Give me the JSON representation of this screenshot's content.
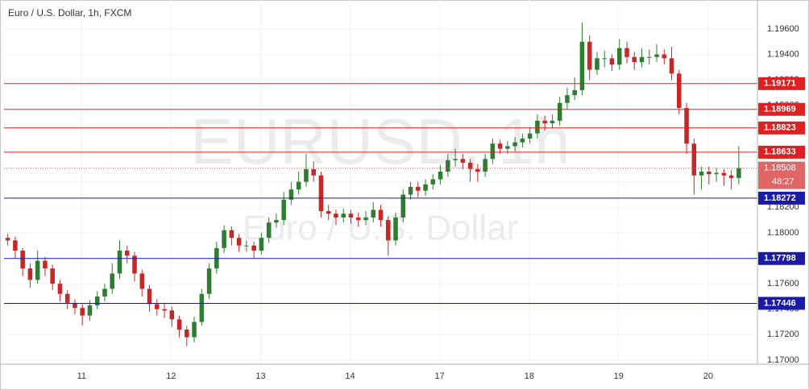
{
  "chart_data": {
    "type": "candlestick",
    "title": "Euro / U.S. Dollar, 1h, FXCM",
    "watermark": "EURUSD, 1h",
    "watermark_subtitle": "Euro / U.S. Dollar",
    "xlim": [
      -0.5,
      100.5
    ],
    "xticks": [
      {
        "value": 9.9,
        "label": "11"
      },
      {
        "value": 21.9,
        "label": "12"
      },
      {
        "value": 33.9,
        "label": "13"
      },
      {
        "value": 45.9,
        "label": "14"
      },
      {
        "value": 57.9,
        "label": "17"
      },
      {
        "value": 69.9,
        "label": "18"
      },
      {
        "value": 81.9,
        "label": "19"
      },
      {
        "value": 93.9,
        "label": "20"
      }
    ],
    "ylim": [
      1.16968,
      1.19796
    ],
    "yticks": [
      {
        "value": 1.17,
        "label": "1.17000"
      },
      {
        "value": 1.172,
        "label": "1.17200"
      },
      {
        "value": 1.174,
        "label": "1.17400"
      },
      {
        "value": 1.176,
        "label": "1.17600"
      },
      {
        "value": 1.178,
        "label": "1.17800"
      },
      {
        "value": 1.18,
        "label": "1.18000"
      },
      {
        "value": 1.182,
        "label": "1.18200"
      },
      {
        "value": 1.184,
        "label": "1.18400"
      },
      {
        "value": 1.186,
        "label": "1.18600"
      },
      {
        "value": 1.188,
        "label": "1.18800"
      },
      {
        "value": 1.19,
        "label": "1.19000"
      },
      {
        "value": 1.192,
        "label": "1.19200"
      },
      {
        "value": 1.194,
        "label": "1.19400"
      },
      {
        "value": 1.196,
        "label": "1.19600"
      }
    ],
    "grid": true,
    "up_color": "#2e7d32",
    "down_color": "#c62828",
    "open": [
      1.1796,
      1.1794,
      1.1786,
      1.1772,
      1.1763,
      1.1778,
      1.1772,
      1.176,
      1.1752,
      1.1745,
      1.1741,
      1.1735,
      1.1743,
      1.175,
      1.1756,
      1.1768,
      1.1786,
      1.1782,
      1.1768,
      1.1756,
      1.1744,
      1.174,
      1.1739,
      1.1732,
      1.1724,
      1.1718,
      1.173,
      1.1752,
      1.1772,
      1.1788,
      1.1802,
      1.1796,
      1.179,
      1.179,
      1.1786,
      1.1796,
      1.1808,
      1.181,
      1.1826,
      1.1834,
      1.184,
      1.185,
      1.1845,
      1.1817,
      1.1815,
      1.1812,
      1.1815,
      1.1812,
      1.181,
      1.1812,
      1.1818,
      1.181,
      1.1794,
      1.1812,
      1.183,
      1.1836,
      1.1833,
      1.1838,
      1.1842,
      1.1848,
      1.1857,
      1.1858,
      1.1855,
      1.185,
      1.1848,
      1.1858,
      1.187,
      1.1866,
      1.1868,
      1.1871,
      1.1874,
      1.1878,
      1.1888,
      1.1886,
      1.1888,
      1.1902,
      1.1908,
      1.1912,
      1.195,
      1.1928,
      1.1937,
      1.1937,
      1.1932,
      1.1945,
      1.1938,
      1.1934,
      1.1938,
      1.1938,
      1.194,
      1.1937,
      1.1925,
      1.1898,
      1.187,
      1.1845,
      1.1848,
      1.1846,
      1.1847,
      1.1845,
      1.1843
    ],
    "high": [
      1.1799,
      1.1797,
      1.1788,
      1.1776,
      1.1786,
      1.1781,
      1.1775,
      1.1763,
      1.1755,
      1.1748,
      1.1744,
      1.1747,
      1.1754,
      1.176,
      1.1776,
      1.1794,
      1.179,
      1.1785,
      1.1771,
      1.1759,
      1.1748,
      1.1745,
      1.1742,
      1.1735,
      1.1727,
      1.1734,
      1.1756,
      1.1776,
      1.1793,
      1.1806,
      1.1805,
      1.1799,
      1.1794,
      1.1793,
      1.18,
      1.1812,
      1.1815,
      1.1832,
      1.184,
      1.1848,
      1.1862,
      1.1856,
      1.1848,
      1.1822,
      1.1818,
      1.1819,
      1.1818,
      1.1816,
      1.1817,
      1.1824,
      1.1822,
      1.1813,
      1.1816,
      1.1834,
      1.184,
      1.184,
      1.1842,
      1.1846,
      1.1853,
      1.1862,
      1.1866,
      1.1862,
      1.1858,
      1.1854,
      1.1862,
      1.1874,
      1.1873,
      1.1872,
      1.1875,
      1.1878,
      1.1883,
      1.1893,
      1.1892,
      1.1893,
      1.1907,
      1.1914,
      1.1922,
      1.1965,
      1.1955,
      1.1942,
      1.1943,
      1.194,
      1.1952,
      1.195,
      1.1942,
      1.1945,
      1.1944,
      1.1948,
      1.1944,
      1.1946,
      1.1928,
      1.1902,
      1.1874,
      1.1852,
      1.1852,
      1.1851,
      1.185,
      1.1849,
      1.1868
    ],
    "low": [
      1.179,
      1.178,
      1.1766,
      1.1757,
      1.176,
      1.1766,
      1.1755,
      1.1746,
      1.174,
      1.1736,
      1.1727,
      1.1731,
      1.174,
      1.1746,
      1.1752,
      1.1764,
      1.1776,
      1.1762,
      1.175,
      1.1738,
      1.1735,
      1.1733,
      1.1726,
      1.1718,
      1.1711,
      1.1714,
      1.1727,
      1.1748,
      1.1768,
      1.1784,
      1.179,
      1.1785,
      1.1785,
      1.178,
      1.1783,
      1.1792,
      1.1804,
      1.1806,
      1.1822,
      1.183,
      1.1836,
      1.184,
      1.1812,
      1.181,
      1.1806,
      1.1808,
      1.1807,
      1.1805,
      1.1806,
      1.1808,
      1.1805,
      1.1782,
      1.179,
      1.1808,
      1.1826,
      1.1828,
      1.1829,
      1.1834,
      1.1838,
      1.1844,
      1.1852,
      1.185,
      1.184,
      1.184,
      1.1844,
      1.1854,
      1.1862,
      1.1862,
      1.1864,
      1.1867,
      1.187,
      1.1874,
      1.188,
      1.1882,
      1.1884,
      1.1897,
      1.1904,
      1.1908,
      1.192,
      1.1924,
      1.193,
      1.1927,
      1.1928,
      1.1933,
      1.1928,
      1.193,
      1.1932,
      1.1934,
      1.1932,
      1.192,
      1.1893,
      1.1862,
      1.183,
      1.1834,
      1.1838,
      1.184,
      1.1837,
      1.1834,
      1.1838
    ],
    "close": [
      1.1794,
      1.1786,
      1.1772,
      1.1763,
      1.1778,
      1.1772,
      1.176,
      1.1752,
      1.1745,
      1.1741,
      1.1735,
      1.1743,
      1.175,
      1.1756,
      1.1768,
      1.1786,
      1.1782,
      1.1768,
      1.1756,
      1.1744,
      1.174,
      1.1739,
      1.1732,
      1.1724,
      1.1718,
      1.173,
      1.1752,
      1.1772,
      1.1788,
      1.1802,
      1.1796,
      1.179,
      1.179,
      1.1786,
      1.1796,
      1.1808,
      1.181,
      1.1826,
      1.1834,
      1.184,
      1.185,
      1.1845,
      1.1817,
      1.1815,
      1.1812,
      1.1815,
      1.1812,
      1.181,
      1.1812,
      1.1818,
      1.181,
      1.1794,
      1.1812,
      1.183,
      1.1836,
      1.1833,
      1.1838,
      1.1842,
      1.1848,
      1.1857,
      1.1858,
      1.1855,
      1.185,
      1.1848,
      1.1858,
      1.187,
      1.1866,
      1.1868,
      1.1871,
      1.1874,
      1.1878,
      1.1888,
      1.1886,
      1.1888,
      1.1902,
      1.1908,
      1.1912,
      1.195,
      1.1928,
      1.1937,
      1.1937,
      1.1932,
      1.1945,
      1.1938,
      1.1934,
      1.1938,
      1.1938,
      1.194,
      1.1937,
      1.1925,
      1.1898,
      1.187,
      1.1845,
      1.1848,
      1.1846,
      1.1847,
      1.1845,
      1.1843,
      1.18508
    ],
    "levels": [
      {
        "value": 1.19171,
        "color": "#e02020"
      },
      {
        "value": 1.18969,
        "color": "#e02020"
      },
      {
        "value": 1.18823,
        "color": "#e02020"
      },
      {
        "value": 1.18633,
        "color": "#e02020"
      },
      {
        "value": 1.18272,
        "color": "#1a1aa8"
      },
      {
        "value": 1.17798,
        "color": "#1a1aa8"
      },
      {
        "value": 1.17446,
        "color": "#1a1aa8"
      }
    ],
    "last_price": 1.18508,
    "last_price_color": "#e06666",
    "countdown": "48:27"
  }
}
